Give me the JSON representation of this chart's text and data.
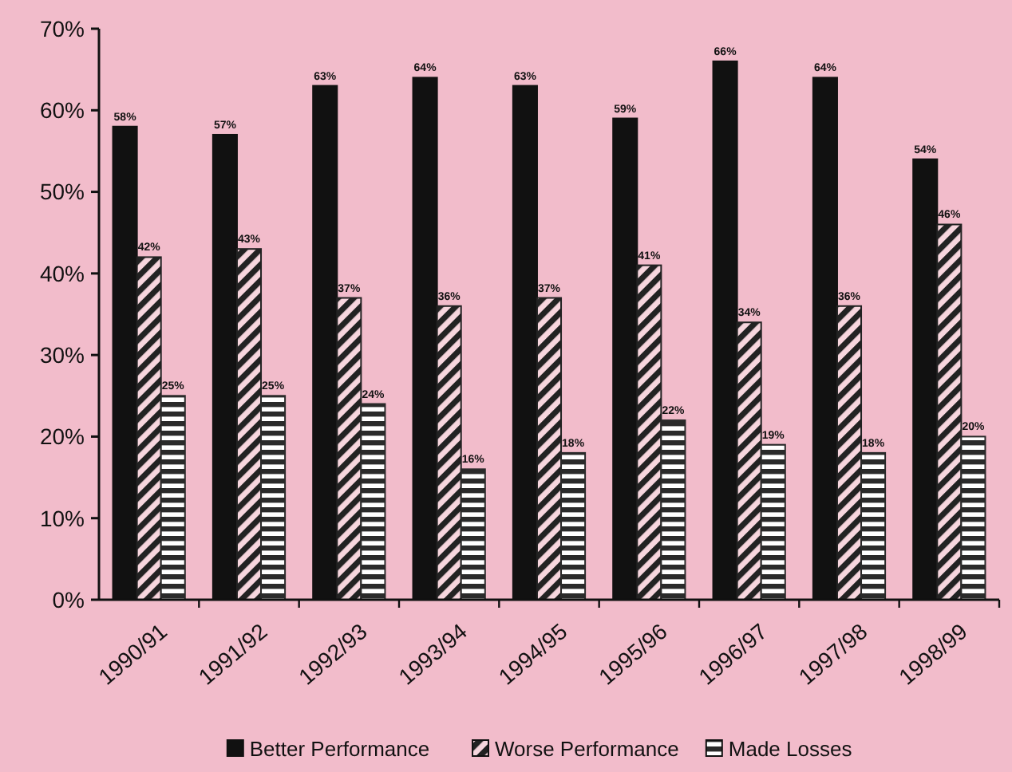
{
  "chart_data": {
    "type": "bar",
    "categories": [
      "1990/91",
      "1991/92",
      "1992/93",
      "1993/94",
      "1994/95",
      "1995/96",
      "1996/97",
      "1997/98",
      "1998/99"
    ],
    "series": [
      {
        "name": "Better Performance",
        "color": "#111111",
        "values": [
          58,
          57,
          63,
          64,
          63,
          59,
          66,
          64,
          54
        ],
        "value_labels": [
          "58%",
          "57%",
          "63%",
          "64%",
          "63%",
          "59%",
          "66%",
          "64%",
          "54%"
        ]
      },
      {
        "name": "Worse Performance",
        "color": "#222222",
        "values": [
          42,
          43,
          37,
          36,
          37,
          41,
          34,
          36,
          46
        ],
        "value_labels": [
          "42%",
          "43%",
          "37%",
          "36%",
          "37%",
          "41%",
          "34%",
          "36%",
          "46%"
        ]
      },
      {
        "name": "Made Losses",
        "color": "#2a2a2a",
        "values": [
          25,
          25,
          24,
          16,
          18,
          22,
          19,
          18,
          20
        ],
        "value_labels": [
          "25%",
          "25%",
          "24%",
          "16%",
          "18%",
          "22%",
          "19%",
          "18%",
          "20%"
        ]
      }
    ],
    "ylim": [
      0,
      70
    ],
    "yticks": [
      {
        "value": 0,
        "label": "0%"
      },
      {
        "value": 10,
        "label": "10%"
      },
      {
        "value": 20,
        "label": "20%"
      },
      {
        "value": 30,
        "label": "30%"
      },
      {
        "value": 40,
        "label": "40%"
      },
      {
        "value": 50,
        "label": "50%"
      },
      {
        "value": 60,
        "label": "60%"
      },
      {
        "value": 70,
        "label": "70%"
      }
    ],
    "grid": false,
    "legend": "bottom"
  }
}
